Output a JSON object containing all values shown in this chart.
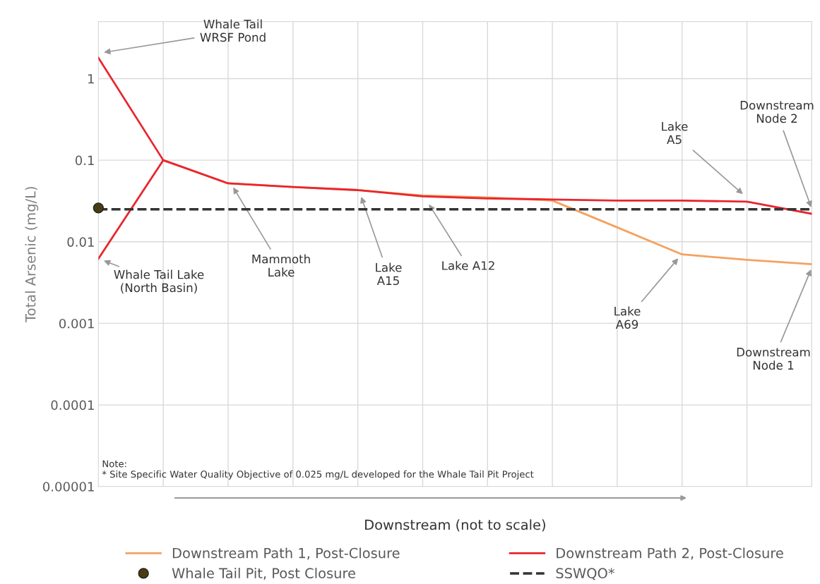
{
  "chart_data": {
    "type": "line",
    "ylabel": "Total Arsenic (mg/L)",
    "xlabel": "Downstream (not to scale)",
    "categories": [
      null,
      null,
      null,
      null,
      null,
      null,
      null,
      null,
      null,
      null,
      null,
      null
    ],
    "log": "y",
    "ylim": [
      1e-05,
      5
    ],
    "yticks": [
      {
        "value": 1e-05,
        "label": "0.00001"
      },
      {
        "value": 0.0001,
        "label": "0.0001"
      },
      {
        "value": 0.001,
        "label": "0.001"
      },
      {
        "value": 0.01,
        "label": "0.01"
      },
      {
        "value": 0.1,
        "label": "0.1"
      },
      {
        "value": 1,
        "label": "1"
      }
    ],
    "grid": true,
    "legend": "bottom",
    "marker": "none",
    "line_style": "solid",
    "series": [
      {
        "name": "Downstream Path 1, Post-Closure",
        "color": "#f4a261",
        "values": [
          null,
          0.1,
          0.052,
          0.047,
          0.043,
          0.037,
          0.035,
          0.032,
          0.015,
          0.007,
          0.006,
          0.0053
        ]
      },
      {
        "name": "Downstream Path 2, Post-Closure",
        "color": "#e8262e",
        "values": [
          1.8,
          0.1,
          0.052,
          0.047,
          0.043,
          0.036,
          0.034,
          0.033,
          0.032,
          0.032,
          0.031,
          0.022
        ]
      },
      {
        "color": "#e8262e",
        "values": [
          0.0062,
          0.1,
          null,
          null,
          null,
          null,
          null,
          null,
          null,
          null,
          null,
          null
        ]
      },
      {
        "name": "Whale Tail Pit, Post Closure",
        "type": "scatter",
        "marker": "circle",
        "color": "#4a3c12",
        "values": [
          0.026,
          null,
          null,
          null,
          null,
          null,
          null,
          null,
          null,
          null,
          null,
          null
        ]
      }
    ],
    "ref_lines": [
      {
        "axis": "y",
        "value": 0.025,
        "label": "SSWQO*",
        "color": "#333333",
        "line_style": "dashed"
      }
    ],
    "annotations": [
      "Whale Tail\nWRSF Pond",
      "Whale Tail Lake\n(North Basin)",
      "Mammoth\nLake",
      "Lake\nA15",
      "Lake A12",
      "Lake\nA69",
      "Downstream\nNode 1",
      "Lake\nA5",
      "Downstream\nNode 2",
      "Note:\n* Site Specific Water Quality Objective of 0.025 mg/L developed for the Whale Tail Pit Project"
    ]
  }
}
